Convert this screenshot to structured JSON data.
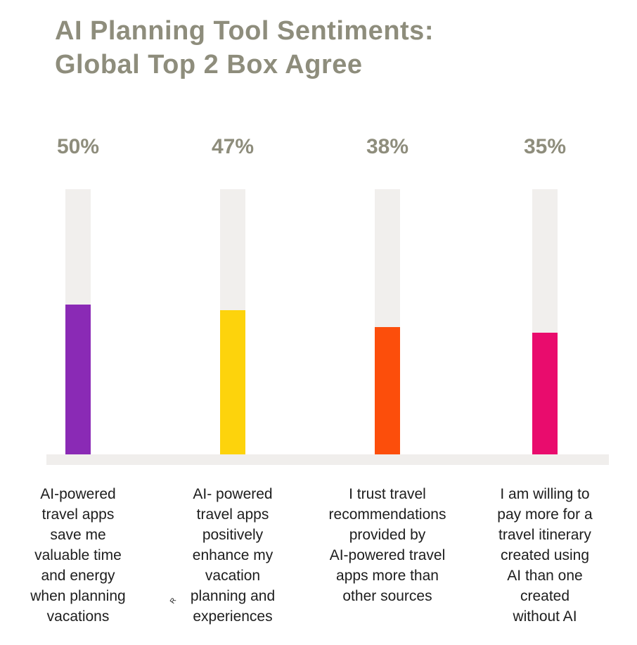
{
  "header": {
    "title_line1": "AI Planning Tool Sentiments:",
    "title_line2": "Global Top 2 Box Agree",
    "title_color": "#8e8d7c"
  },
  "chart_data": {
    "type": "bar",
    "title": "AI Planning Tool Sentiments: Global Top 2 Box Agree",
    "categories": [
      "AI-powered travel apps save me valuable time and energy when planning vacations",
      "AI- powered travel apps positively enhance my vacation planning and experiences",
      "I trust travel recommendations provided by AI-powered travel apps more than other sources",
      "I am willing to pay more for a travel itinerary created using AI than one created without AI"
    ],
    "categories_lines": [
      [
        "AI-powered",
        "travel apps",
        "save me",
        "valuable time",
        "and energy",
        "when planning",
        "vacations"
      ],
      [
        "AI- powered",
        "travel apps",
        "positively",
        "enhance my",
        "vacation",
        "planning and",
        "experiences"
      ],
      [
        "I trust travel",
        "recommendations",
        "provided by",
        "AI-powered travel",
        "apps more than",
        "other sources"
      ],
      [
        "I am willing to",
        "pay more for a",
        "travel itinerary",
        "created using",
        "AI than one",
        "created",
        "without AI"
      ]
    ],
    "values": [
      50,
      47,
      38,
      35
    ],
    "value_labels": [
      "50%",
      "47%",
      "38%",
      "35%"
    ],
    "series_colors": [
      "#8a2ab5",
      "#fdd30c",
      "#fc4e0b",
      "#e90c6d"
    ],
    "track_color": "#f1efed",
    "baseline_color": "#f0eeec",
    "value_label_color": "#8e8d7c",
    "category_label_color": "#1d1d1d",
    "xlabel": "",
    "ylabel": "",
    "axes": "none",
    "grid": false,
    "legend": "none"
  },
  "annotations": {
    "stray_letter": "R"
  }
}
